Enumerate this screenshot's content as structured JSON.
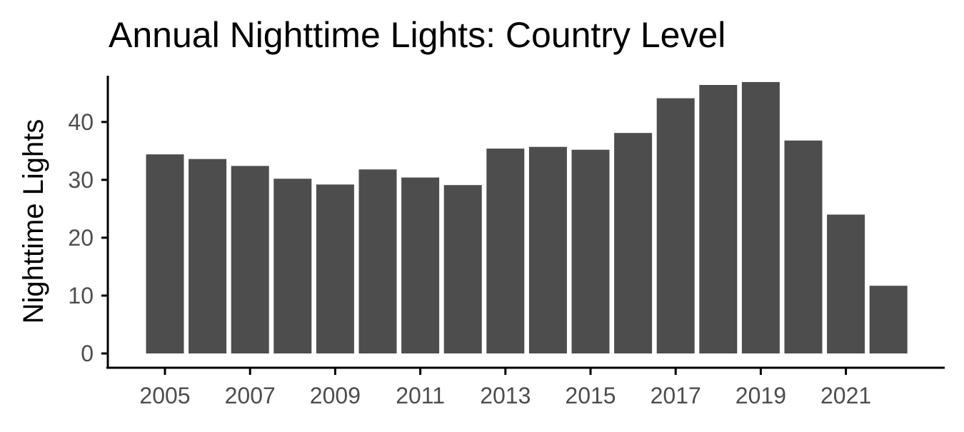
{
  "chart_data": {
    "type": "bar",
    "title": "Annual Nighttime Lights: Country Level",
    "xlabel": "",
    "ylabel": "Nighttime Lights",
    "x": [
      2005,
      2006,
      2007,
      2008,
      2009,
      2010,
      2011,
      2012,
      2013,
      2014,
      2015,
      2016,
      2017,
      2018,
      2019,
      2020,
      2021,
      2022
    ],
    "values": [
      34.4,
      33.6,
      32.4,
      30.2,
      29.2,
      31.8,
      30.4,
      29.1,
      35.4,
      35.7,
      35.2,
      38.1,
      44.1,
      46.4,
      46.9,
      36.8,
      24.0,
      11.7
    ],
    "x_ticks": [
      "2005",
      "2007",
      "2009",
      "2011",
      "2013",
      "2015",
      "2017",
      "2019",
      "2021"
    ],
    "y_ticks": [
      "0",
      "10",
      "20",
      "30",
      "40"
    ],
    "ylim": [
      0,
      48
    ],
    "grid": false,
    "legend": "none",
    "colors": {
      "bar": "#4d4d4d",
      "axis": "#000000",
      "tick_label": "#4d4d4d"
    }
  }
}
